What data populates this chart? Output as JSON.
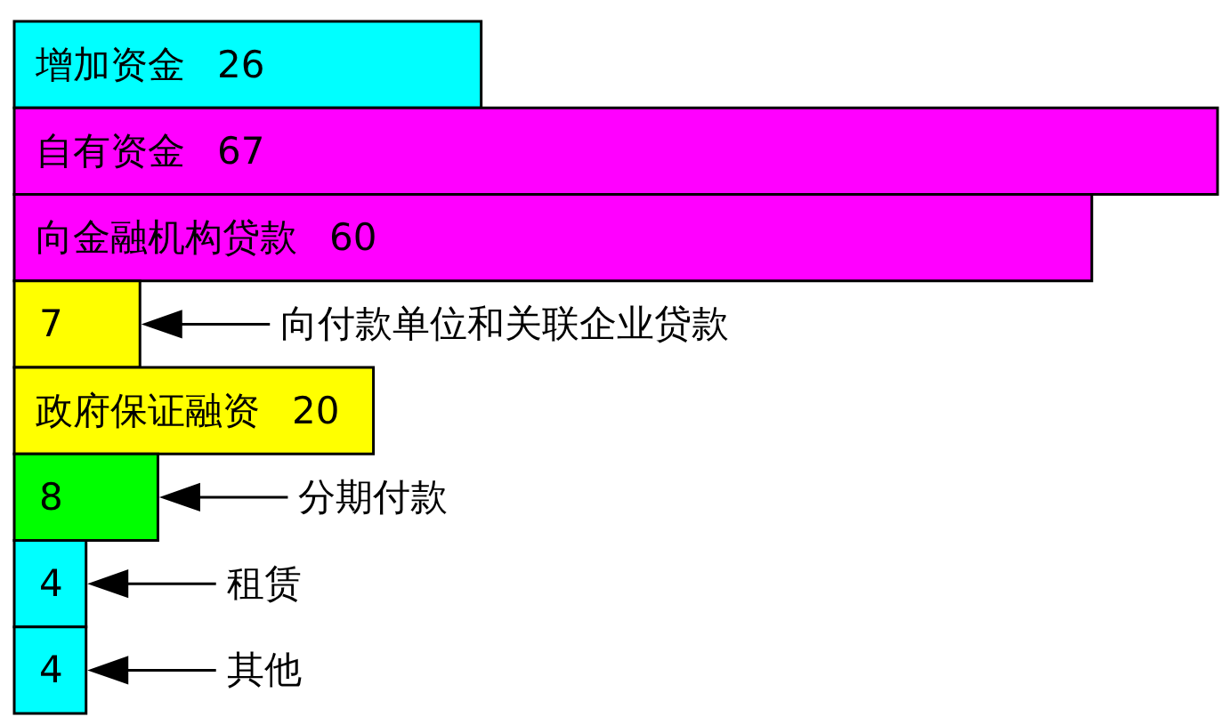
{
  "chart_data": {
    "type": "bar",
    "orientation": "horizontal",
    "data_labels": true,
    "categories": [
      "增加资金",
      "自有资金",
      "向金融机构贷款",
      "向付款单位和关联企业贷款",
      "政府保证融资",
      "分期付款",
      "租赁",
      "其他"
    ],
    "values": [
      26,
      67,
      60,
      7,
      20,
      8,
      4,
      4
    ],
    "colors": [
      "#00ffff",
      "#ff00ff",
      "#ff00ff",
      "#ffff00",
      "#ffff00",
      "#00ff00",
      "#00ffff",
      "#00ffff"
    ]
  }
}
